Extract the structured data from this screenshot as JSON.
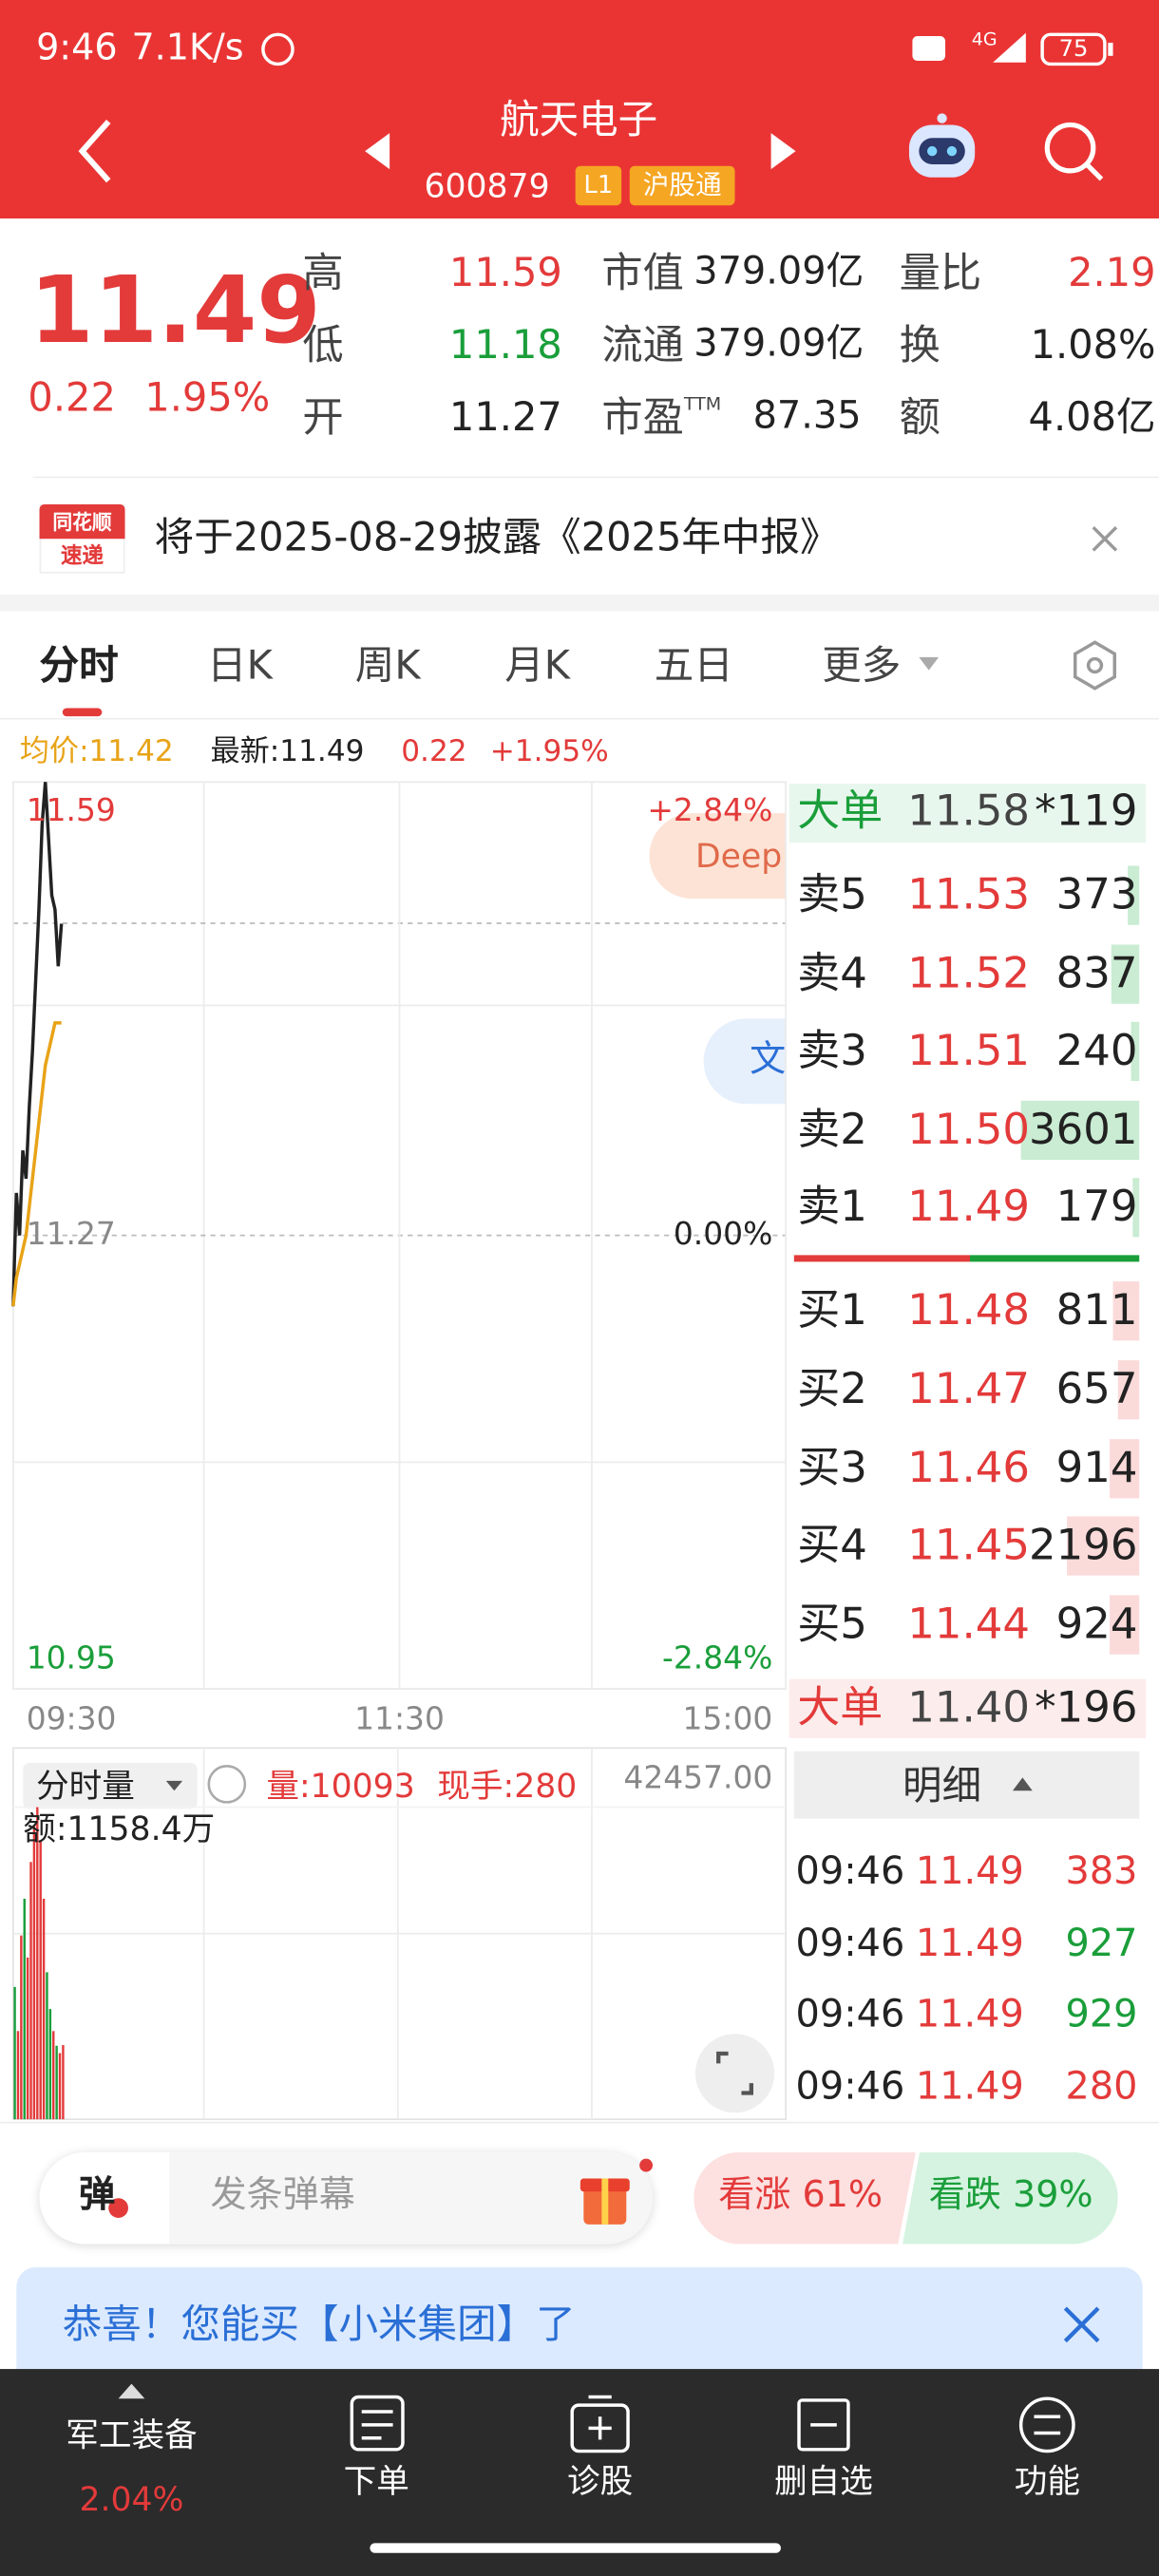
{
  "status_bar": {
    "time": "9:46",
    "speed": "7.1K/s",
    "network": "4G",
    "battery": "75"
  },
  "header": {
    "name": "航天电子",
    "code": "600879",
    "level": "L1",
    "tag": "沪股通"
  },
  "quote": {
    "price": "11.49",
    "change": "0.22",
    "change_pct": "1.95%",
    "stats": [
      {
        "label": "高",
        "value": "11.59",
        "color": "#e33a3a"
      },
      {
        "label": "低",
        "value": "11.18",
        "color": "#1a9e3a"
      },
      {
        "label": "开",
        "value": "11.27",
        "color": "#222222"
      },
      {
        "label": "市值",
        "value": "379.09亿",
        "color": "#222222"
      },
      {
        "label": "流通",
        "value": "379.09亿",
        "color": "#222222"
      },
      {
        "label": "市盈",
        "sup": "TTM",
        "value": "87.35",
        "color": "#222222"
      },
      {
        "label": "量比",
        "value": "2.19",
        "color": "#e33a3a"
      },
      {
        "label": "换",
        "value": "1.08%",
        "color": "#222222"
      },
      {
        "label": "额",
        "value": "4.08亿",
        "color": "#222222"
      }
    ]
  },
  "notice": {
    "badge_top": "同花顺",
    "badge_bottom": "速递",
    "text": "将于2025-08-29披露《2025年中报》"
  },
  "tabs": [
    "分时",
    "日K",
    "周K",
    "月K",
    "五日",
    "更多"
  ],
  "chart_info": {
    "avg": "均价:11.42",
    "latest": "最新:11.49",
    "change": "0.22",
    "change_pct": "+1.95%"
  },
  "chart_data": [
    {
      "type": "line",
      "x": [
        0,
        1,
        2,
        3,
        4,
        5,
        6,
        7,
        8,
        9,
        10,
        11,
        12,
        13,
        14,
        15
      ],
      "xlim": [
        0,
        240
      ],
      "xticks": [
        {
          "value": 0,
          "label": "09:30"
        },
        {
          "value": 120,
          "label": "11:30"
        },
        {
          "value": 240,
          "label": "15:00"
        }
      ],
      "ylim": [
        10.95,
        11.59
      ],
      "yticks": [
        11.59,
        11.27,
        10.95
      ],
      "y2lim": [
        -2.84,
        2.84
      ],
      "y2ticks": [
        {
          "value": 2.84,
          "label": "+2.84%"
        },
        {
          "value": 0,
          "label": "0.00%"
        },
        {
          "value": -2.84,
          "label": "-2.84%"
        }
      ],
      "grid": true,
      "series": [
        {
          "color": "#222222",
          "values": [
            11.22,
            11.3,
            11.27,
            11.33,
            11.31,
            11.36,
            11.4,
            11.45,
            11.5,
            11.56,
            11.59,
            11.55,
            11.51,
            11.5,
            11.46,
            11.49
          ]
        },
        {
          "color": "#e8a317",
          "values": [
            11.22,
            11.24,
            11.25,
            11.26,
            11.27,
            11.29,
            11.31,
            11.33,
            11.35,
            11.37,
            11.39,
            11.4,
            11.41,
            11.42,
            11.42,
            11.42
          ]
        }
      ]
    },
    {
      "type": "bar",
      "title": "分时量",
      "stats": [
        "量:10093",
        "现手:280"
      ],
      "amount": "额:1158.4万",
      "x": [
        0,
        1,
        2,
        3,
        4,
        5,
        6,
        7,
        8,
        9,
        10,
        11,
        12,
        13,
        14,
        15
      ],
      "values": [
        18000,
        12000,
        25000,
        30000,
        22000,
        35000,
        40000,
        42457,
        38000,
        30000,
        20000,
        15000,
        12000,
        10000,
        9000,
        10093
      ],
      "colors": [
        "#1a9e3a",
        "#e33a3a",
        "#e33a3a",
        "#1a9e3a",
        "#e33a3a",
        "#e33a3a",
        "#e33a3a",
        "#e33a3a",
        "#e33a3a",
        "#e33a3a",
        "#1a9e3a",
        "#1a9e3a",
        "#e33a3a",
        "#1a9e3a",
        "#e33a3a",
        "#e33a3a"
      ],
      "xlim": [
        0,
        240
      ],
      "ylim": [
        0,
        42457
      ],
      "yticks": [
        {
          "value": 42457,
          "label": "42457.00"
        }
      ],
      "grid": true
    }
  ],
  "floating": {
    "deep": "Deep",
    "wen": "文"
  },
  "order_book": {
    "big_sell": {
      "label": "大单",
      "price": "11.58",
      "volume": "*119"
    },
    "asks": [
      {
        "label": "卖5",
        "price": "11.53",
        "volume": 373
      },
      {
        "label": "卖4",
        "price": "11.52",
        "volume": 837
      },
      {
        "label": "卖3",
        "price": "11.51",
        "volume": 240
      },
      {
        "label": "卖2",
        "price": "11.50",
        "volume": 3601
      },
      {
        "label": "卖1",
        "price": "11.49",
        "volume": 179
      }
    ],
    "bids": [
      {
        "label": "买1",
        "price": "11.48",
        "volume": 811
      },
      {
        "label": "买2",
        "price": "11.47",
        "volume": 657
      },
      {
        "label": "买3",
        "price": "11.46",
        "volume": 914
      },
      {
        "label": "买4",
        "price": "11.45",
        "volume": 2196
      },
      {
        "label": "买5",
        "price": "11.44",
        "volume": 924
      }
    ],
    "big_buy": {
      "label": "大单",
      "price": "11.40",
      "volume": "*196"
    }
  },
  "details": {
    "title": "明细",
    "rows": [
      {
        "time": "09:46",
        "price": "11.49",
        "volume": "383",
        "color": "#e33a3a"
      },
      {
        "time": "09:46",
        "price": "11.49",
        "volume": "927",
        "color": "#1a9e3a"
      },
      {
        "time": "09:46",
        "price": "11.49",
        "volume": "929",
        "color": "#1a9e3a"
      },
      {
        "time": "09:46",
        "price": "11.49",
        "volume": "280",
        "color": "#e33a3a"
      }
    ]
  },
  "danmu": {
    "badge": "弹",
    "placeholder": "发条弹幕"
  },
  "sentiment": {
    "up": "看涨 61%",
    "down": "看跌 39%"
  },
  "banner": "恭喜！您能买【小米集团】了",
  "nav": {
    "sector": "军工装备",
    "sector_change": "2.04%",
    "items": [
      "下单",
      "诊股",
      "删自选",
      "功能"
    ]
  }
}
